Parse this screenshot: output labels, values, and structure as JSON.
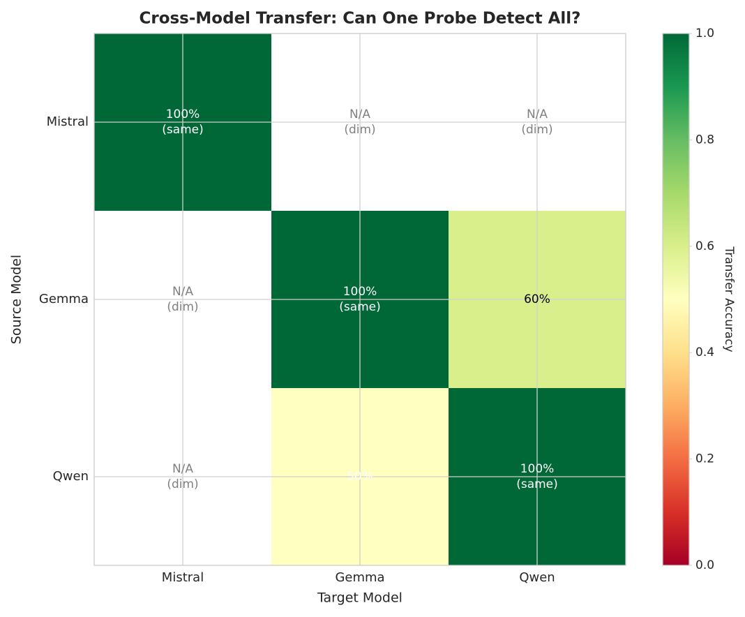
{
  "chart_data": {
    "type": "heatmap",
    "title": "Cross-Model Transfer: Can One Probe Detect All?",
    "x_label": "Target Model",
    "y_label": "Source Model",
    "x_categories": [
      "Mistral",
      "Gemma",
      "Qwen"
    ],
    "y_categories": [
      "Mistral",
      "Gemma",
      "Qwen"
    ],
    "values": [
      [
        1.0,
        null,
        null
      ],
      [
        null,
        1.0,
        0.6
      ],
      [
        null,
        0.5,
        1.0
      ]
    ],
    "value_labels": [
      [
        [
          "100%",
          "(same)"
        ],
        [
          "N/A",
          "(dim)"
        ],
        [
          "N/A",
          "(dim)"
        ]
      ],
      [
        [
          "N/A",
          "(dim)"
        ],
        [
          "100%",
          "(same)"
        ],
        [
          "60%"
        ]
      ],
      [
        [
          "N/A",
          "(dim)"
        ],
        [
          "50%"
        ],
        [
          "100%",
          "(same)"
        ]
      ]
    ],
    "value_label_colors": [
      [
        "#ffffff",
        "#808080",
        "#808080"
      ],
      [
        "#808080",
        "#ffffff",
        "#000000"
      ],
      [
        "#808080",
        "#ffffff",
        "#ffffff"
      ]
    ],
    "colormap": "RdYlGn",
    "colorbar_label": "Transfer Accuracy",
    "clim": [
      0,
      1
    ],
    "cticks": [
      {
        "value": 0,
        "label": "0.0"
      },
      0.2,
      0.4,
      0.6,
      0.8,
      {
        "value": 1,
        "label": "1.0"
      }
    ],
    "grid": true
  }
}
